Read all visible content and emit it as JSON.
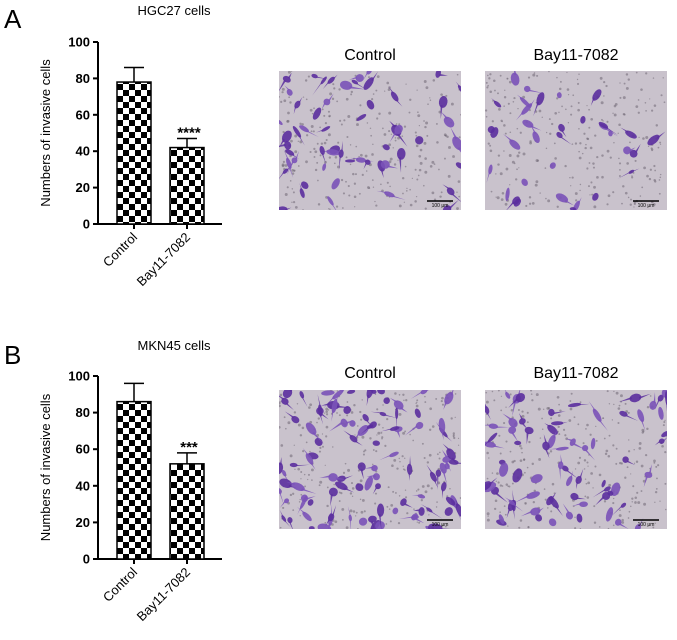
{
  "panels": [
    {
      "letter": "A",
      "title": "HGC27 cells",
      "image_titles": [
        "Control",
        "Bay11-7082"
      ],
      "scale_bar_label": "100 μm"
    },
    {
      "letter": "B",
      "title": "MKN45 cells",
      "image_titles": [
        "Control",
        "Bay11-7082"
      ],
      "scale_bar_label": "100 μm"
    }
  ],
  "chart_data": [
    {
      "type": "bar",
      "title": "HGC27 cells",
      "ylabel": "Numbers of invasive cells",
      "xlabel": "",
      "categories": [
        "Control",
        "Bay11-7082"
      ],
      "values": [
        78,
        42
      ],
      "error": [
        8,
        5
      ],
      "annotations": [
        "",
        "****"
      ],
      "ylim": [
        0,
        100
      ],
      "yticks": [
        0,
        20,
        40,
        60,
        80,
        100
      ],
      "pattern": "checkerboard",
      "colors": {
        "bar_dark": "#000000",
        "bar_light": "#ffffff"
      }
    },
    {
      "type": "bar",
      "title": "MKN45 cells",
      "ylabel": "Numbers of invasive cells",
      "xlabel": "",
      "categories": [
        "Control",
        "Bay11-7082"
      ],
      "values": [
        86,
        52
      ],
      "error": [
        10,
        6
      ],
      "annotations": [
        "",
        "***"
      ],
      "ylim": [
        0,
        100
      ],
      "yticks": [
        0,
        20,
        40,
        60,
        80,
        100
      ],
      "pattern": "checkerboard",
      "colors": {
        "bar_dark": "#000000",
        "bar_light": "#ffffff"
      }
    }
  ],
  "colors": {
    "stain": "#5b2f9e",
    "stain_light": "#7a52b8",
    "background_field": "#c9c2cc"
  }
}
